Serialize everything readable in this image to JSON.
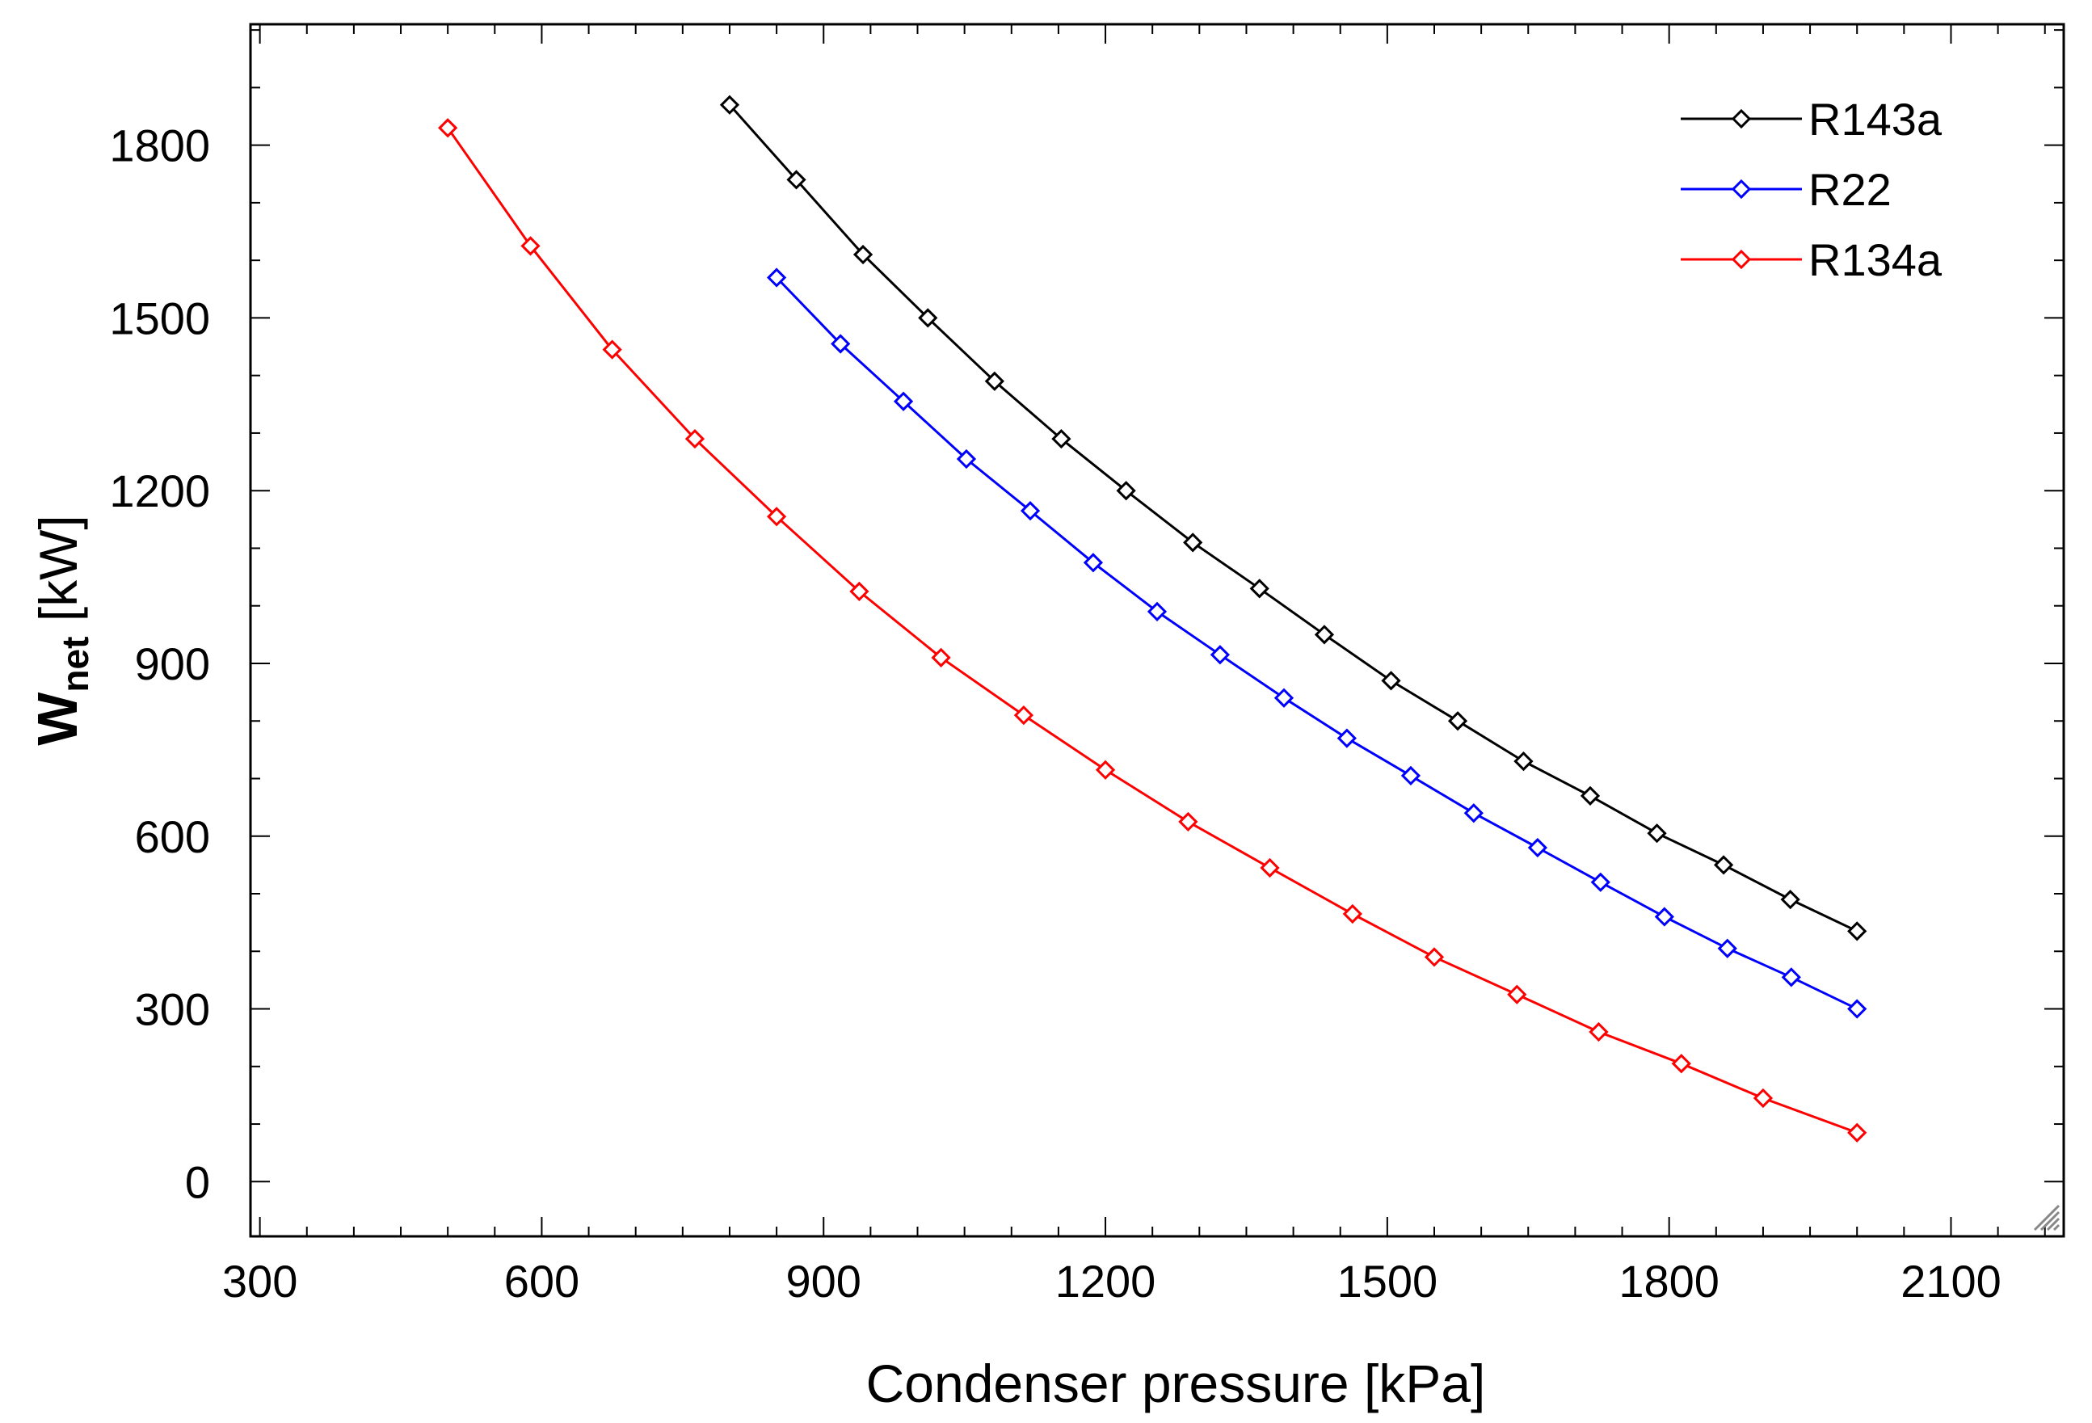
{
  "chart_data": {
    "type": "line",
    "title": "",
    "xlabel": "Condenser pressure [kPa]",
    "ylabel": {
      "main": "W",
      "subscript": "net",
      "rest": " [kW]"
    },
    "xlim": [
      290,
      2220
    ],
    "ylim": [
      -95,
      2010
    ],
    "xticks": [
      300,
      600,
      900,
      1200,
      1500,
      1800,
      2100
    ],
    "yticks": [
      0,
      300,
      600,
      900,
      1200,
      1500,
      1800
    ],
    "x_minor_step": 50,
    "y_minor_step": 100,
    "legend_position": "top-right",
    "series": [
      {
        "name": "R143a",
        "color": "#000000",
        "x": [
          800,
          871,
          942,
          1011,
          1082,
          1153,
          1222,
          1293,
          1364,
          1433,
          1504,
          1575,
          1645,
          1716,
          1787,
          1858,
          1929,
          2000
        ],
        "y": [
          1870,
          1740,
          1610,
          1500,
          1390,
          1290,
          1200,
          1110,
          1030,
          950,
          870,
          800,
          730,
          670,
          605,
          550,
          490,
          435
        ]
      },
      {
        "name": "R22",
        "color": "#0000ff",
        "x": [
          850,
          918,
          985,
          1052,
          1120,
          1187,
          1255,
          1322,
          1390,
          1457,
          1525,
          1592,
          1660,
          1727,
          1795,
          1862,
          1930,
          2000
        ],
        "y": [
          1570,
          1455,
          1355,
          1255,
          1165,
          1075,
          990,
          915,
          840,
          770,
          705,
          640,
          580,
          520,
          460,
          405,
          355,
          300
        ]
      },
      {
        "name": "R134a",
        "color": "#ff0000",
        "x": [
          500,
          588,
          675,
          763,
          850,
          938,
          1025,
          1113,
          1200,
          1288,
          1375,
          1463,
          1550,
          1638,
          1725,
          1813,
          1900,
          2000
        ],
        "y": [
          1830,
          1625,
          1445,
          1290,
          1155,
          1025,
          910,
          810,
          715,
          625,
          545,
          465,
          390,
          325,
          260,
          205,
          145,
          85
        ]
      }
    ]
  }
}
